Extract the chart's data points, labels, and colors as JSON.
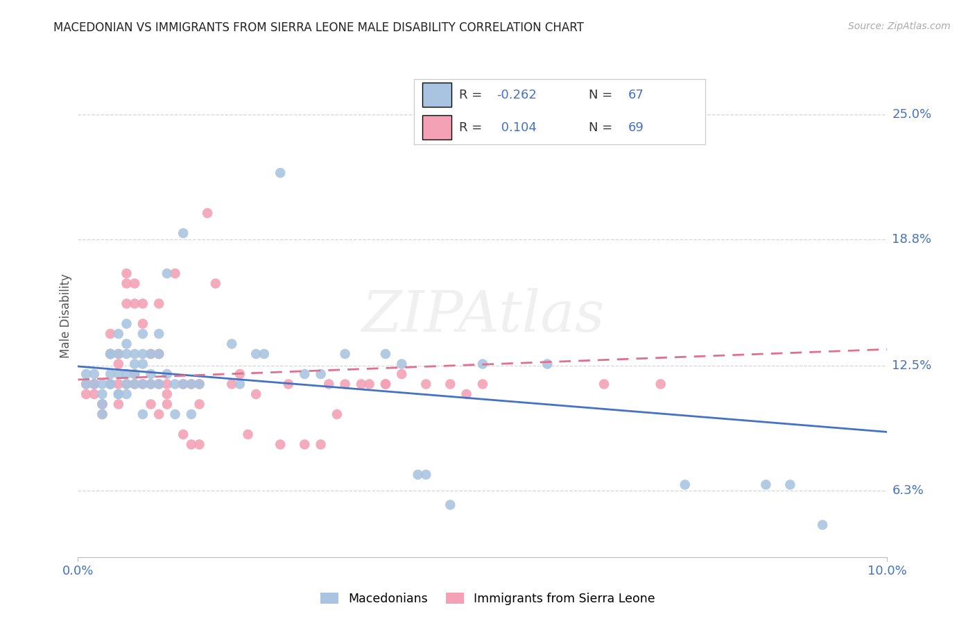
{
  "title": "MACEDONIAN VS IMMIGRANTS FROM SIERRA LEONE MALE DISABILITY CORRELATION CHART",
  "source": "Source: ZipAtlas.com",
  "ylabel": "Male Disability",
  "y_ticks": [
    0.063,
    0.125,
    0.188,
    0.25
  ],
  "y_tick_labels": [
    "6.3%",
    "12.5%",
    "18.8%",
    "25.0%"
  ],
  "x_min": 0.0,
  "x_max": 0.1,
  "y_min": 0.03,
  "y_max": 0.27,
  "macedonian_R": -0.262,
  "macedonian_N": 67,
  "sierra_leone_R": 0.104,
  "sierra_leone_N": 69,
  "macedonian_scatter_color": "#a8c4e0",
  "sierra_leone_scatter_color": "#f4a0b5",
  "macedonian_line_color": "#4472c4",
  "sierra_leone_line_color": "#e07090",
  "background_color": "#ffffff",
  "grid_color": "#d5d5d5",
  "tick_color": "#4472c4",
  "title_color": "#222222",
  "source_color": "#aaaaaa",
  "ylabel_color": "#555555",
  "macedonians_x": [
    0.001,
    0.001,
    0.002,
    0.002,
    0.003,
    0.003,
    0.003,
    0.003,
    0.004,
    0.004,
    0.004,
    0.004,
    0.004,
    0.005,
    0.005,
    0.005,
    0.005,
    0.005,
    0.006,
    0.006,
    0.006,
    0.006,
    0.006,
    0.006,
    0.007,
    0.007,
    0.007,
    0.007,
    0.008,
    0.008,
    0.008,
    0.008,
    0.008,
    0.009,
    0.009,
    0.009,
    0.01,
    0.01,
    0.01,
    0.011,
    0.011,
    0.012,
    0.012,
    0.013,
    0.013,
    0.014,
    0.014,
    0.015,
    0.019,
    0.02,
    0.022,
    0.023,
    0.025,
    0.028,
    0.03,
    0.033,
    0.038,
    0.04,
    0.042,
    0.043,
    0.046,
    0.05,
    0.058,
    0.075,
    0.085,
    0.088,
    0.092
  ],
  "macedonians_y": [
    0.116,
    0.121,
    0.116,
    0.121,
    0.116,
    0.106,
    0.101,
    0.111,
    0.116,
    0.121,
    0.131,
    0.131,
    0.116,
    0.111,
    0.111,
    0.141,
    0.131,
    0.121,
    0.116,
    0.111,
    0.146,
    0.136,
    0.131,
    0.121,
    0.121,
    0.131,
    0.126,
    0.116,
    0.131,
    0.126,
    0.116,
    0.101,
    0.141,
    0.131,
    0.121,
    0.116,
    0.141,
    0.131,
    0.116,
    0.171,
    0.121,
    0.116,
    0.101,
    0.191,
    0.116,
    0.116,
    0.101,
    0.116,
    0.136,
    0.116,
    0.131,
    0.131,
    0.221,
    0.121,
    0.121,
    0.131,
    0.131,
    0.126,
    0.071,
    0.071,
    0.056,
    0.126,
    0.126,
    0.066,
    0.066,
    0.066,
    0.046
  ],
  "sierra_leone_x": [
    0.001,
    0.001,
    0.002,
    0.002,
    0.002,
    0.003,
    0.003,
    0.003,
    0.004,
    0.004,
    0.004,
    0.004,
    0.005,
    0.005,
    0.005,
    0.005,
    0.006,
    0.006,
    0.006,
    0.006,
    0.007,
    0.007,
    0.007,
    0.007,
    0.008,
    0.008,
    0.008,
    0.009,
    0.009,
    0.009,
    0.01,
    0.01,
    0.01,
    0.01,
    0.011,
    0.011,
    0.011,
    0.012,
    0.013,
    0.013,
    0.014,
    0.014,
    0.015,
    0.015,
    0.015,
    0.016,
    0.017,
    0.019,
    0.02,
    0.021,
    0.022,
    0.025,
    0.026,
    0.028,
    0.03,
    0.031,
    0.032,
    0.033,
    0.035,
    0.036,
    0.038,
    0.038,
    0.04,
    0.043,
    0.046,
    0.048,
    0.05,
    0.065,
    0.072
  ],
  "sierra_leone_y": [
    0.116,
    0.111,
    0.116,
    0.116,
    0.111,
    0.106,
    0.106,
    0.101,
    0.141,
    0.131,
    0.131,
    0.116,
    0.131,
    0.126,
    0.116,
    0.106,
    0.171,
    0.166,
    0.156,
    0.116,
    0.166,
    0.156,
    0.121,
    0.116,
    0.156,
    0.146,
    0.116,
    0.131,
    0.116,
    0.106,
    0.156,
    0.131,
    0.116,
    0.101,
    0.116,
    0.111,
    0.106,
    0.171,
    0.116,
    0.091,
    0.116,
    0.086,
    0.116,
    0.106,
    0.086,
    0.201,
    0.166,
    0.116,
    0.121,
    0.091,
    0.111,
    0.086,
    0.116,
    0.086,
    0.086,
    0.116,
    0.101,
    0.116,
    0.116,
    0.116,
    0.116,
    0.116,
    0.121,
    0.116,
    0.116,
    0.111,
    0.116,
    0.116,
    0.116
  ]
}
